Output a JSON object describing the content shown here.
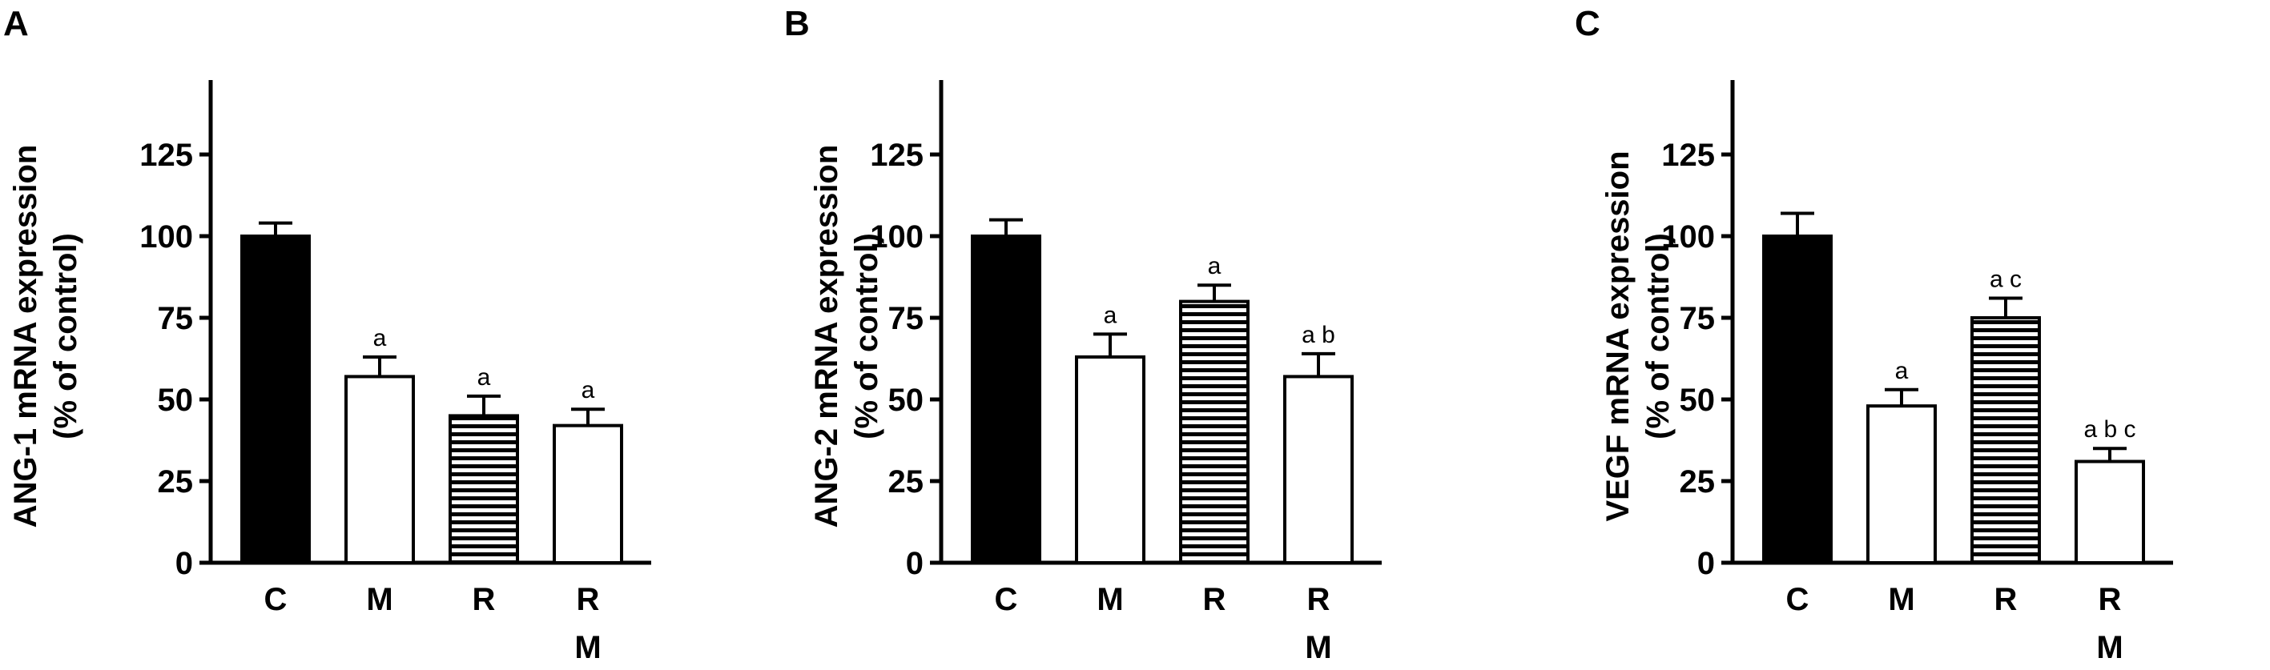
{
  "chart_data": [
    {
      "panel": "A",
      "type": "bar",
      "ylabel_line1": "ANG-1 mRNA expression",
      "ylabel_line2": "(% of control)",
      "ylim": [
        0,
        145
      ],
      "yticks": [
        "0",
        "25",
        "50",
        "75",
        "100",
        "125"
      ],
      "categories": [
        {
          "line1": "C",
          "line2": ""
        },
        {
          "line1": "M",
          "line2": ""
        },
        {
          "line1": "R",
          "line2": ""
        },
        {
          "line1": "R",
          "line2": "M"
        }
      ],
      "values": [
        100,
        57,
        45,
        42
      ],
      "errors": [
        4,
        6,
        6,
        5
      ],
      "fills": [
        "solid",
        "open",
        "striped",
        "open"
      ],
      "annotations": [
        "",
        "a",
        "a",
        "a"
      ]
    },
    {
      "panel": "B",
      "type": "bar",
      "ylabel_line1": "ANG-2 mRNA expression",
      "ylabel_line2": "(% of control)",
      "ylim": [
        0,
        145
      ],
      "yticks": [
        "0",
        "25",
        "50",
        "75",
        "100",
        "125"
      ],
      "categories": [
        {
          "line1": "C",
          "line2": ""
        },
        {
          "line1": "M",
          "line2": ""
        },
        {
          "line1": "R",
          "line2": ""
        },
        {
          "line1": "R",
          "line2": "M"
        }
      ],
      "values": [
        100,
        63,
        80,
        57
      ],
      "errors": [
        5,
        7,
        5,
        7
      ],
      "fills": [
        "solid",
        "open",
        "striped",
        "open"
      ],
      "annotations": [
        "",
        "a",
        "a",
        "a b"
      ]
    },
    {
      "panel": "C",
      "type": "bar",
      "ylabel_line1": "VEGF mRNA expression",
      "ylabel_line2": "(% of control)",
      "ylim": [
        0,
        145
      ],
      "yticks": [
        "0",
        "25",
        "50",
        "75",
        "100",
        "125"
      ],
      "categories": [
        {
          "line1": "C",
          "line2": ""
        },
        {
          "line1": "M",
          "line2": ""
        },
        {
          "line1": "R",
          "line2": ""
        },
        {
          "line1": "R",
          "line2": "M"
        }
      ],
      "values": [
        100,
        48,
        75,
        31
      ],
      "errors": [
        7,
        5,
        6,
        4
      ],
      "fills": [
        "solid",
        "open",
        "striped",
        "open"
      ],
      "annotations": [
        "",
        "a",
        "a c",
        "a b c"
      ]
    }
  ],
  "colors": {
    "ink": "#000000",
    "paper": "#ffffff"
  }
}
